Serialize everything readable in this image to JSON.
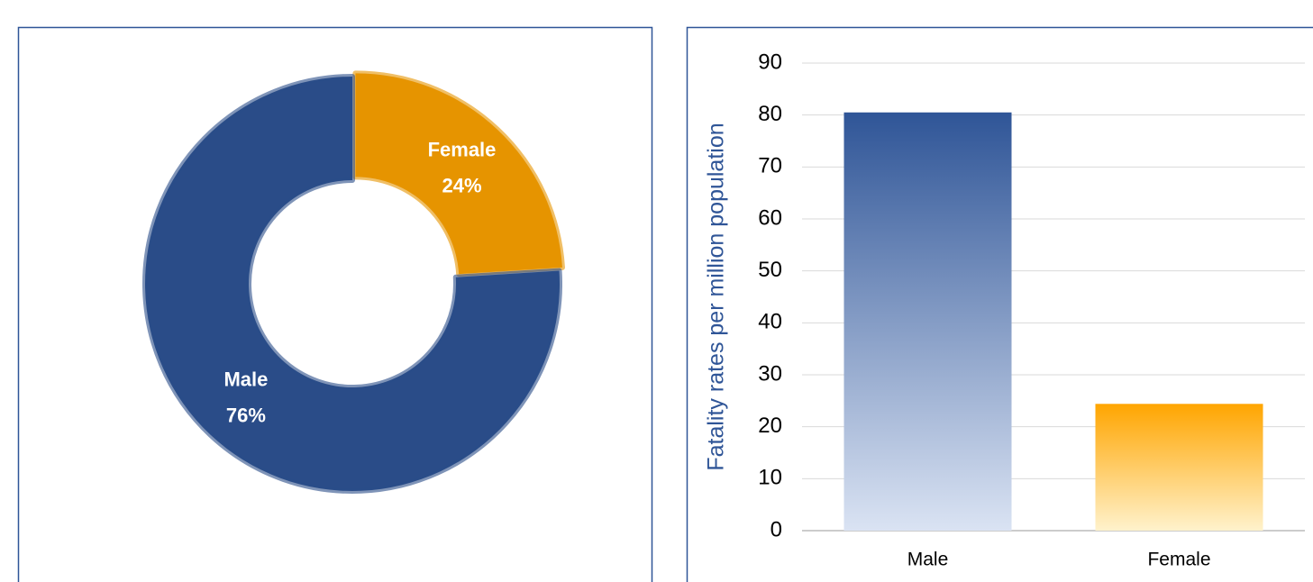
{
  "chart_data": [
    {
      "type": "donut",
      "categories": [
        "Male",
        "Female"
      ],
      "values": [
        76,
        24
      ],
      "value_labels": [
        "76%",
        "24%"
      ],
      "colors": [
        "#2f5597",
        "#ffa500"
      ]
    },
    {
      "type": "bar",
      "ylabel": "Fatality rates per million population",
      "categories": [
        "Male",
        "Female"
      ],
      "values": [
        80.5,
        24.4
      ],
      "colors": [
        "#2f5597",
        "#ffa500"
      ],
      "ylim": [
        0,
        90
      ],
      "yticks": [
        0,
        10,
        20,
        30,
        40,
        50,
        60,
        70,
        80,
        90
      ],
      "grid": true
    }
  ]
}
